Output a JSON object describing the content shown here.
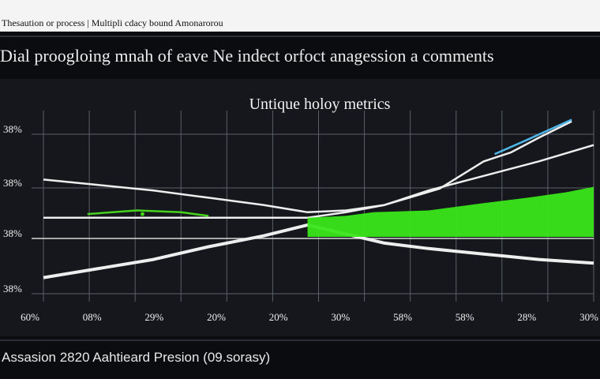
{
  "header": {
    "top_text": "Thesaution or process | Multipli cdacy bound Amonarorou",
    "headline": "Dial proogloing mnah of eave Ne indect orfoct anagession a comments"
  },
  "footer": {
    "caption": "Assasion 2820 Aahtieard Presion (09.sorasy)"
  },
  "colors": {
    "background": "#15171c",
    "white_series": "#eeeeee",
    "green_area": "#39e61a",
    "blue_series": "#4fb6e8"
  },
  "chart_data": {
    "type": "line",
    "title": "Untique holoy metrics",
    "xlabel": "",
    "ylabel": "",
    "x_tick_labels": [
      "60%",
      "08%",
      "29%",
      "20%",
      "20%",
      "30%",
      "58%",
      "58%",
      "28%",
      "30%"
    ],
    "y_tick_labels": [
      "38%",
      "38%",
      "38%",
      "38%"
    ],
    "ylim": [
      0,
      100
    ],
    "grid": true,
    "legend": "none",
    "series": [
      {
        "style": "line",
        "color": "#eeeeee",
        "points": [
          [
            0,
            62
          ],
          [
            0.1,
            59
          ],
          [
            0.2,
            56
          ],
          [
            0.3,
            52
          ],
          [
            0.4,
            48
          ],
          [
            0.48,
            44
          ],
          [
            0.55,
            45
          ],
          [
            0.62,
            48
          ],
          [
            0.7,
            56
          ],
          [
            0.8,
            64
          ],
          [
            0.9,
            72
          ],
          [
            1.0,
            81
          ]
        ]
      },
      {
        "style": "line",
        "color": "#eeeeee",
        "points": [
          [
            0,
            8
          ],
          [
            0.1,
            13
          ],
          [
            0.2,
            18
          ],
          [
            0.3,
            25
          ],
          [
            0.4,
            31
          ],
          [
            0.48,
            37
          ],
          [
            0.55,
            32
          ],
          [
            0.62,
            27
          ],
          [
            0.7,
            24
          ],
          [
            0.8,
            21
          ],
          [
            0.9,
            18
          ],
          [
            1.0,
            16
          ]
        ]
      },
      {
        "style": "line",
        "color": "#eeeeee",
        "points": [
          [
            0,
            41
          ],
          [
            0.3,
            41
          ],
          [
            0.4,
            41
          ],
          [
            0.48,
            41
          ],
          [
            0.55,
            44
          ],
          [
            0.62,
            48
          ],
          [
            0.72,
            57
          ],
          [
            0.8,
            72
          ],
          [
            0.85,
            77
          ],
          [
            0.9,
            85
          ],
          [
            0.96,
            94
          ]
        ]
      },
      {
        "style": "line",
        "color": "#4fb6e8",
        "points": [
          [
            0.82,
            76
          ],
          [
            0.88,
            84
          ],
          [
            0.96,
            95
          ]
        ]
      },
      {
        "style": "line",
        "color": "#46d11c",
        "points": [
          [
            0.08,
            43
          ],
          [
            0.17,
            45
          ],
          [
            0.25,
            44
          ],
          [
            0.3,
            42
          ]
        ]
      },
      {
        "style": "area",
        "color": "#39e61a",
        "points": [
          [
            0.48,
            41
          ],
          [
            0.55,
            42
          ],
          [
            0.6,
            44
          ],
          [
            0.7,
            45
          ],
          [
            0.8,
            49
          ],
          [
            0.88,
            52
          ],
          [
            0.95,
            55
          ],
          [
            1.0,
            58
          ]
        ]
      }
    ]
  }
}
